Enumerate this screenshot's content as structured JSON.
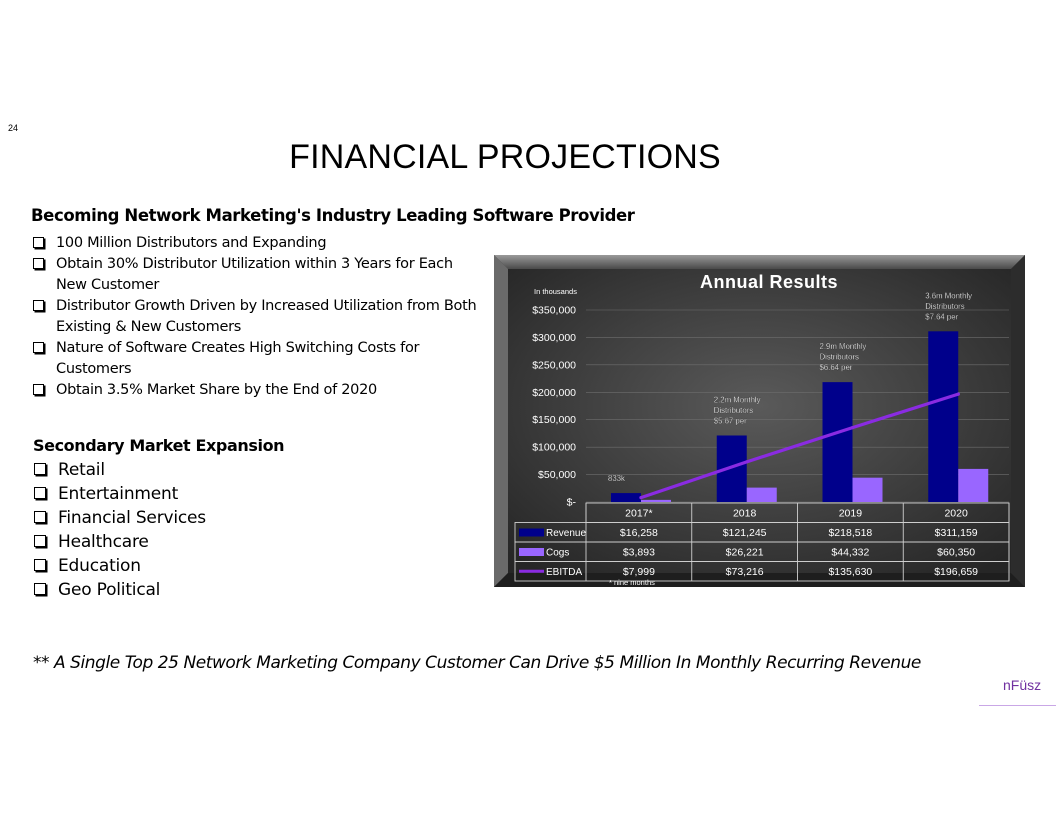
{
  "page": {
    "number": "24",
    "title": "FINANCIAL PROJECTIONS"
  },
  "section1": {
    "heading": "Becoming Network Marketing's Industry Leading Software Provider",
    "bullets": [
      "100 Million Distributors and Expanding",
      "Obtain 30% Distributor Utilization within 3 Years for Each New Customer",
      "Distributor Growth Driven by Increased Utilization from Both Existing & New Customers",
      "Nature of Software Creates High Switching Costs for Customers",
      "Obtain 3.5% Market Share by the End of 2020"
    ]
  },
  "section2": {
    "heading": "Secondary Market Expansion",
    "bullets": [
      "Retail",
      "Entertainment",
      "Financial Services",
      "Healthcare",
      "Education",
      "Geo Political"
    ]
  },
  "footer": {
    "note": "** A Single Top 25 Network Marketing Company Customer Can Drive $5 Million In Monthly Recurring Revenue"
  },
  "brand": {
    "name": "nFüsz",
    "color": "#7030a0"
  },
  "chart_data": {
    "type": "bar",
    "title": "Annual Results",
    "unit_label": "In thousands",
    "categories": [
      "2017*",
      "2018",
      "2019",
      "2020"
    ],
    "ylim": [
      0,
      350000
    ],
    "y_ticks": [
      0,
      50000,
      100000,
      150000,
      200000,
      250000,
      300000,
      350000
    ],
    "y_tick_labels": [
      "$-",
      "$50,000",
      "$100,000",
      "$150,000",
      "$200,000",
      "$250,000",
      "$300,000",
      "$350,000"
    ],
    "grid": true,
    "series": [
      {
        "name": "Revenue",
        "kind": "bar",
        "color": "#00008b",
        "values": [
          16258,
          121245,
          218518,
          311159
        ],
        "labels": [
          "$16,258",
          "$121,245",
          "$218,518",
          "$311,159"
        ]
      },
      {
        "name": "Cogs",
        "kind": "bar",
        "color": "#9966ff",
        "values": [
          3893,
          26221,
          44332,
          60350
        ],
        "labels": [
          "$3,893",
          "$26,221",
          "$44,332",
          "$60,350"
        ]
      },
      {
        "name": "EBITDA",
        "kind": "line",
        "color": "#8a2be2",
        "values": [
          7999,
          73216,
          135630,
          196659
        ],
        "labels": [
          "$7,999",
          "$73,216",
          "$135,630",
          "$196,659"
        ]
      }
    ],
    "annotations": [
      {
        "category": "2017*",
        "lines": [
          "833k"
        ]
      },
      {
        "category": "2018",
        "lines": [
          "2.2m Monthly",
          "Distributors",
          "$5.67 per"
        ]
      },
      {
        "category": "2019",
        "lines": [
          "2.9m Monthly",
          "Distributors",
          "$6.64 per"
        ]
      },
      {
        "category": "2020",
        "lines": [
          "3.6m Monthly",
          "Distributors",
          "$7.64 per"
        ]
      }
    ],
    "footnote": "* nine months"
  }
}
